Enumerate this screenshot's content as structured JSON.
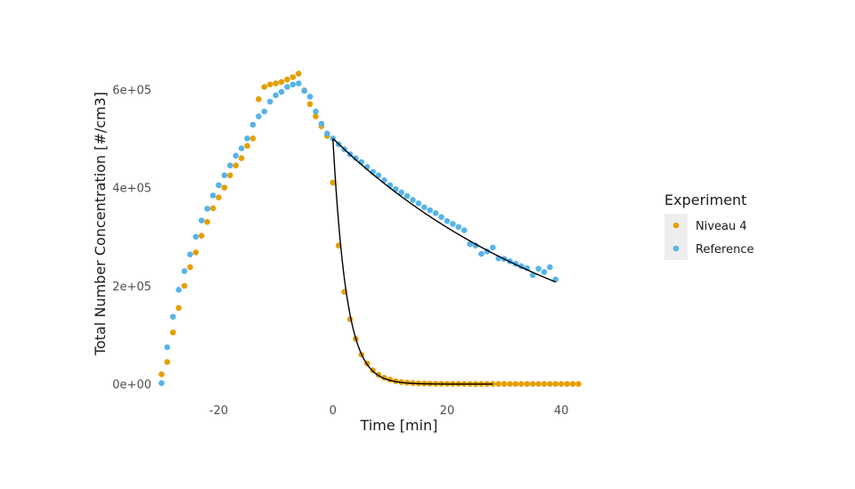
{
  "chart_data": {
    "type": "scatter",
    "xlabel": "Time [min]",
    "ylabel": "Total Number Concentration [#/cm3]",
    "x_ticks": [
      -20,
      0,
      20,
      40
    ],
    "x_tick_labels": [
      "-20",
      "0",
      "20",
      "40"
    ],
    "y_ticks": [
      0,
      200000,
      400000,
      600000
    ],
    "y_tick_labels": [
      "0e+00",
      "2e+05",
      "4e+05",
      "6e+05"
    ],
    "xlim": [
      -31,
      54
    ],
    "ylim": [
      -25000,
      655000
    ],
    "grid": false,
    "legend": {
      "title": "Experiment",
      "position": "right"
    },
    "series": [
      {
        "name": "Niveau 4",
        "color": "#E69F00",
        "x": [
          -30,
          -29,
          -28,
          -27,
          -26,
          -25,
          -24,
          -23,
          -22,
          -21,
          -20,
          -19,
          -18,
          -17,
          -16,
          -15,
          -14,
          -13,
          -12,
          -11,
          -10,
          -9,
          -8,
          -7,
          -6,
          -5,
          -4,
          -3,
          -2,
          -1,
          0,
          1,
          2,
          3,
          4,
          5,
          6,
          7,
          8,
          9,
          10,
          11,
          12,
          13,
          14,
          15,
          16,
          17,
          18,
          19,
          20,
          21,
          22,
          23,
          24,
          25,
          26,
          27,
          28,
          29,
          30,
          31,
          32,
          33,
          34,
          35,
          36,
          37,
          38,
          39,
          40,
          41,
          42,
          43
        ],
        "y": [
          20000,
          45000,
          105000,
          155000,
          200000,
          238000,
          268000,
          302000,
          330000,
          358000,
          380000,
          400000,
          425000,
          445000,
          460000,
          485000,
          500000,
          580000,
          605000,
          610000,
          612000,
          615000,
          620000,
          625000,
          632000,
          598000,
          570000,
          545000,
          525000,
          505000,
          410000,
          282000,
          188000,
          132000,
          92000,
          60000,
          42000,
          28000,
          19000,
          13000,
          9000,
          6000,
          4000,
          3000,
          2000,
          1500,
          1200,
          1000,
          800,
          700,
          600,
          500,
          450,
          400,
          350,
          300,
          300,
          300,
          300,
          300,
          300,
          300,
          300,
          300,
          300,
          300,
          300,
          300,
          300,
          300,
          300,
          300,
          300,
          300
        ]
      },
      {
        "name": "Reference",
        "color": "#56B4E9",
        "x": [
          -30,
          -29,
          -28,
          -27,
          -26,
          -25,
          -24,
          -23,
          -22,
          -21,
          -20,
          -19,
          -18,
          -17,
          -16,
          -15,
          -14,
          -13,
          -12,
          -11,
          -10,
          -9,
          -8,
          -7,
          -6,
          -5,
          -4,
          -3,
          -2,
          -1,
          0,
          1,
          2,
          3,
          4,
          5,
          6,
          7,
          8,
          9,
          10,
          11,
          12,
          13,
          14,
          15,
          16,
          17,
          18,
          19,
          20,
          21,
          22,
          23,
          24,
          25,
          26,
          27,
          28,
          29,
          30,
          31,
          32,
          33,
          34,
          35,
          36,
          37,
          38,
          39
        ],
        "y": [
          2000,
          75000,
          137000,
          192000,
          230000,
          264000,
          300000,
          333000,
          357000,
          384000,
          405000,
          425000,
          445000,
          465000,
          480000,
          500000,
          528000,
          545000,
          555000,
          575000,
          588000,
          595000,
          605000,
          610000,
          612000,
          597000,
          585000,
          555000,
          530000,
          510000,
          500000,
          488000,
          478000,
          468000,
          460000,
          452000,
          442000,
          432000,
          425000,
          415000,
          405000,
          397000,
          390000,
          383000,
          375000,
          368000,
          360000,
          354000,
          348000,
          340000,
          332000,
          326000,
          320000,
          313000,
          285000,
          282000,
          265000,
          270000,
          278000,
          256000,
          255000,
          250000,
          245000,
          240000,
          236000,
          222000,
          235000,
          228000,
          238000,
          213000
        ]
      }
    ],
    "fit_lines": [
      {
        "series": "Niveau 4",
        "x_start": 0,
        "x_end": 28,
        "y0": 500000,
        "decay_rate": 0.42,
        "color": "#000000"
      },
      {
        "series": "Reference",
        "x_start": 0,
        "x_end": 39,
        "y0": 500000,
        "decay_rate": 0.0225,
        "color": "#000000"
      }
    ]
  }
}
